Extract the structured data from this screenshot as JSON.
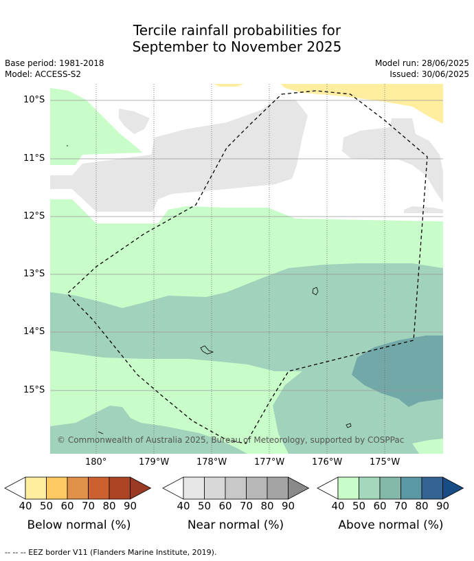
{
  "title": {
    "line1": "Tercile rainfall probabilities for",
    "line2": "September to November 2025"
  },
  "meta": {
    "base_period": "Base period: 1981-2018",
    "model": "Model: ACCESS-S2",
    "model_run": "Model run: 28/06/2025",
    "issued": "Issued: 30/06/2025"
  },
  "map": {
    "lat_labels": [
      "10°S",
      "11°S",
      "12°S",
      "13°S",
      "14°S",
      "15°S"
    ],
    "lon_labels": [
      "180°",
      "179°W",
      "178°W",
      "177°W",
      "176°W",
      "175°W"
    ],
    "copyright": "© Commonwealth of Australia 2025, Bureau of Meteorology, supported by COSPPac"
  },
  "colorbars": [
    {
      "title": "Below normal (%)",
      "ticks": [
        "40",
        "50",
        "60",
        "70",
        "80",
        "90"
      ],
      "colors": [
        "#ffeda0",
        "#fec960",
        "#e09048",
        "#cc6030",
        "#ac4424",
        "#9b3a24"
      ]
    },
    {
      "title": "Near normal (%)",
      "ticks": [
        "40",
        "50",
        "60",
        "70",
        "80",
        "90"
      ],
      "colors": [
        "#e6e6e6",
        "#d8d8d8",
        "#c8c8c8",
        "#b8b8b8",
        "#a4a4a4",
        "#8a8a8a"
      ]
    },
    {
      "title": "Above normal (%)",
      "ticks": [
        "40",
        "50",
        "60",
        "70",
        "80",
        "90"
      ],
      "colors": [
        "#c8fcc8",
        "#a4d8bc",
        "#84b8a8",
        "#5c98a4",
        "#346494",
        "#184c84"
      ]
    }
  ],
  "footnote": "--  --  -- EEZ border V11 (Flanders Marine Institute, 2019)."
}
